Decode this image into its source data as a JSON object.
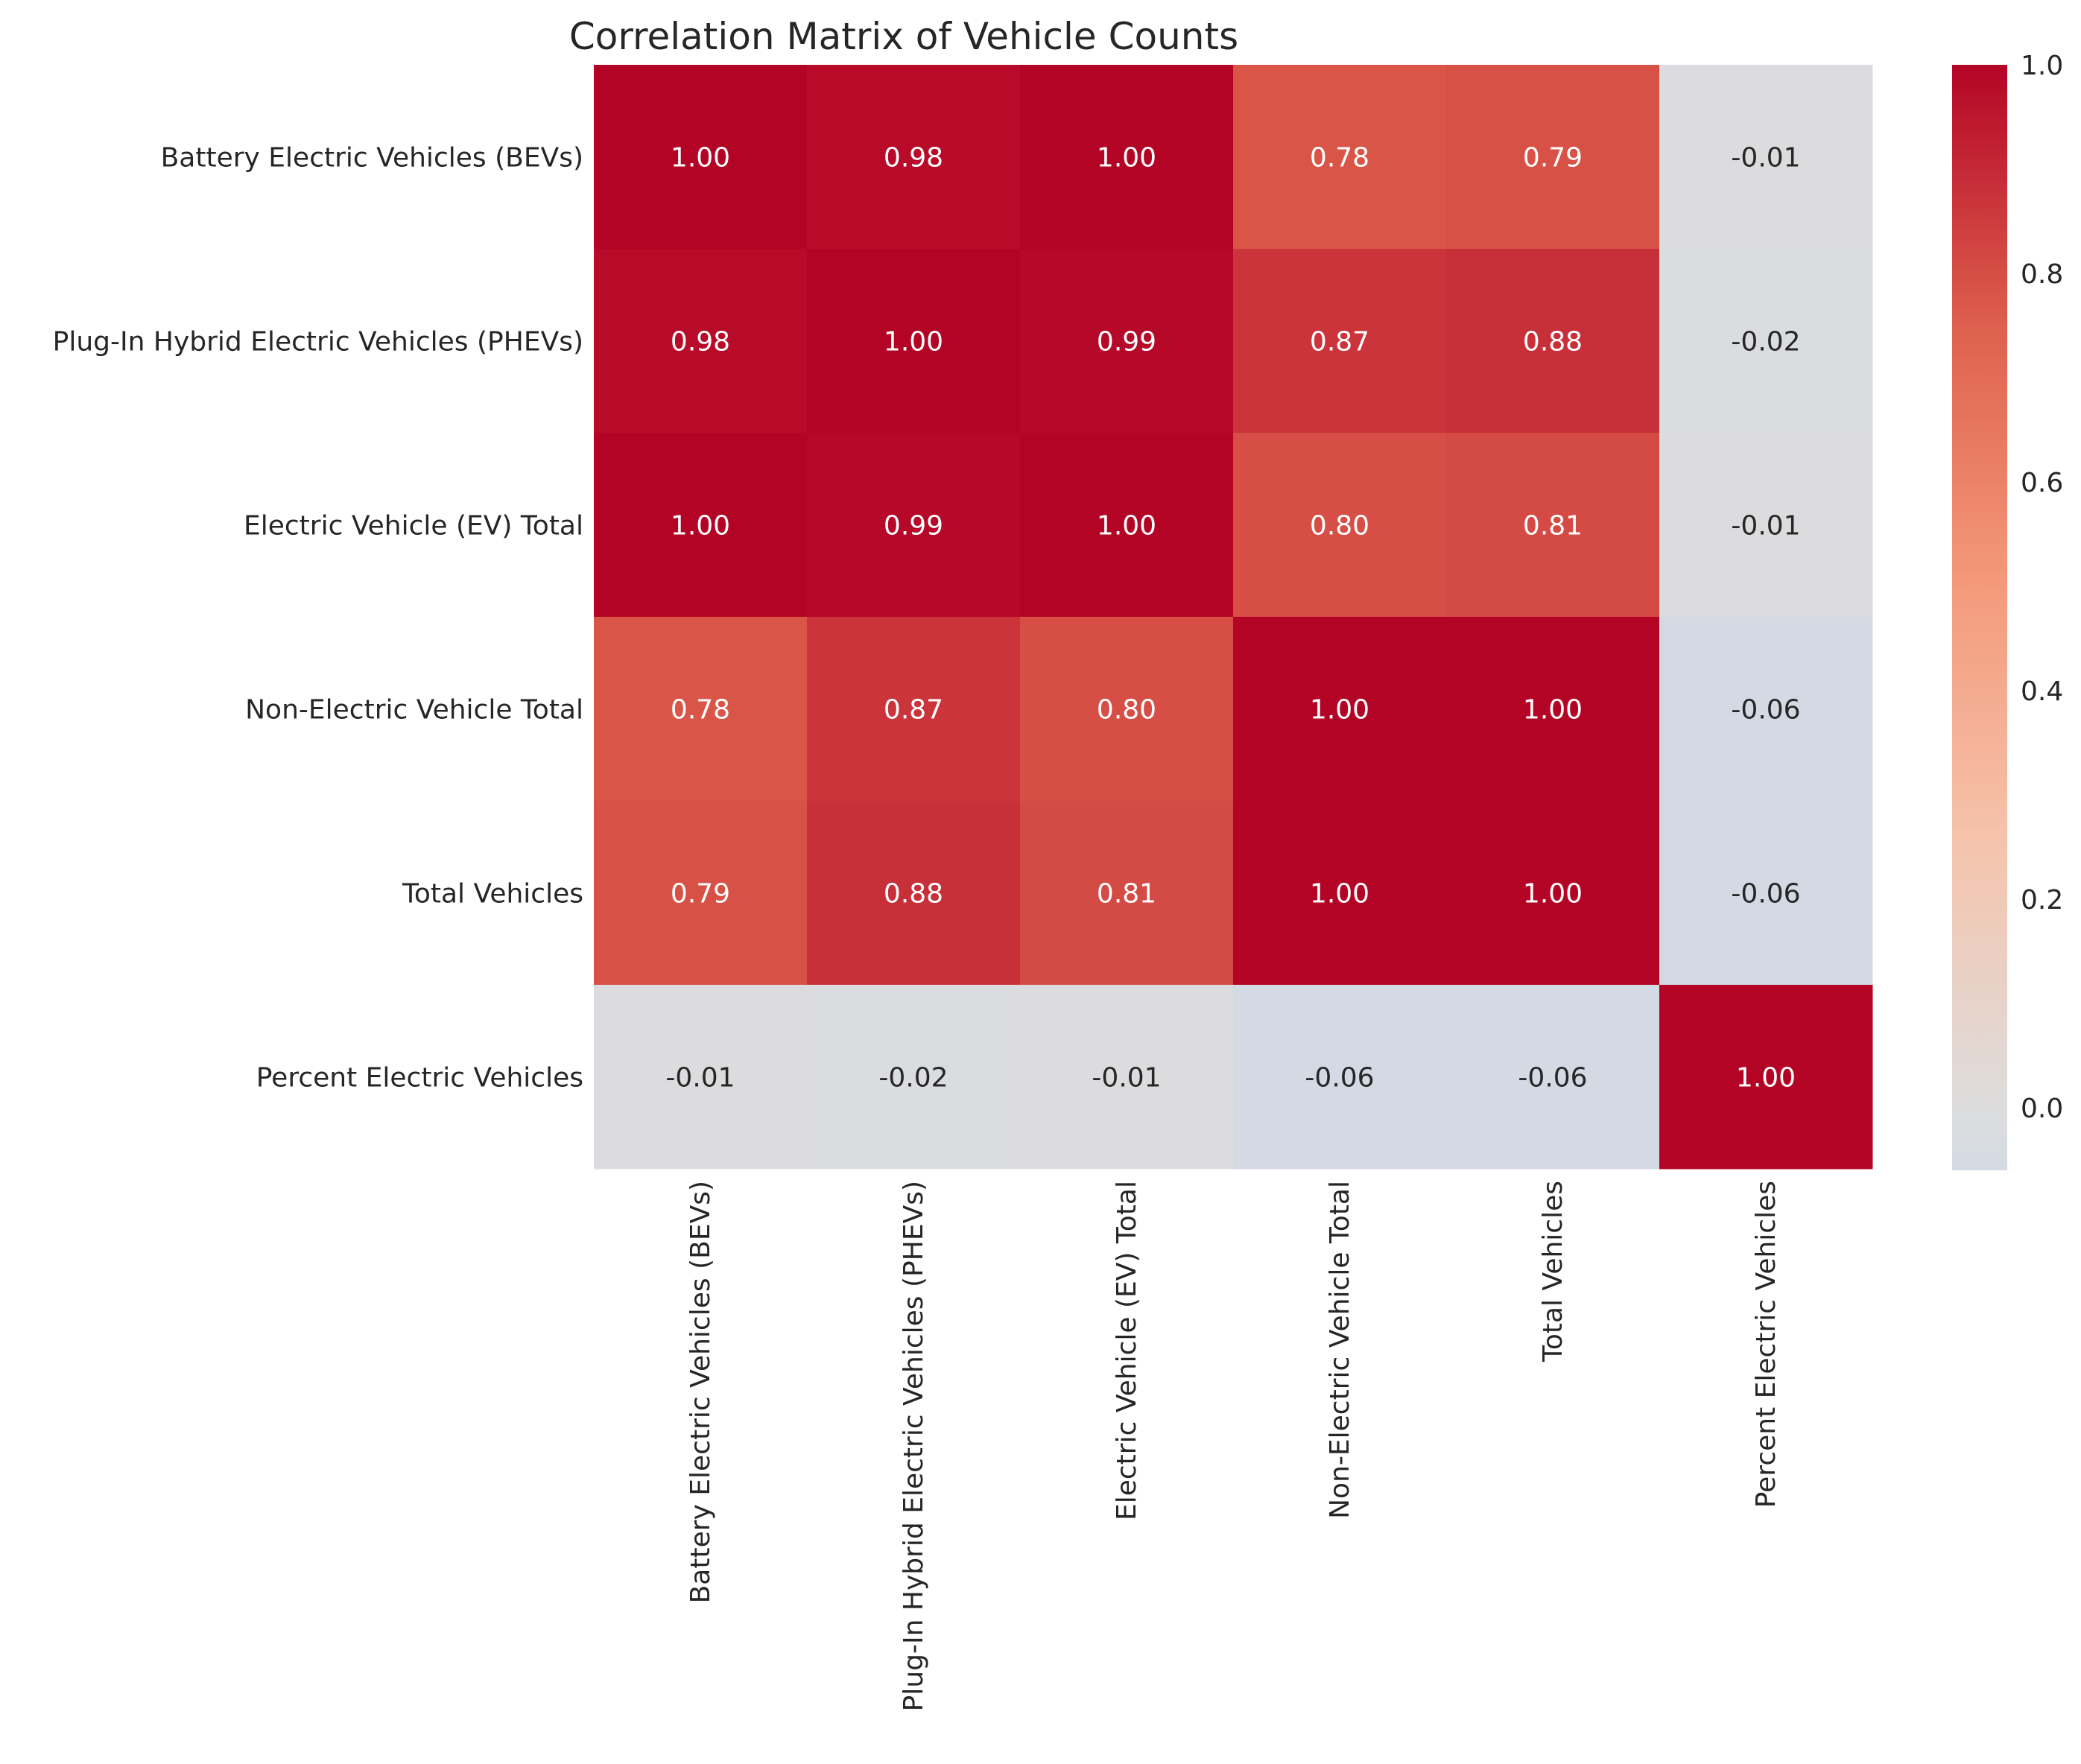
{
  "chart_data": {
    "type": "heatmap",
    "title": "Correlation Matrix of Vehicle Counts",
    "xlabel": "",
    "ylabel": "",
    "row_labels": [
      "Battery Electric Vehicles (BEVs)",
      "Plug-In Hybrid Electric Vehicles (PHEVs)",
      "Electric Vehicle (EV) Total",
      "Non-Electric Vehicle Total",
      "Total Vehicles",
      "Percent Electric Vehicles"
    ],
    "col_labels": [
      "Battery Electric Vehicles (BEVs)",
      "Plug-In Hybrid Electric Vehicles (PHEVs)",
      "Electric Vehicle (EV) Total",
      "Non-Electric Vehicle Total",
      "Total Vehicles",
      "Percent Electric Vehicles"
    ],
    "values": [
      [
        1.0,
        0.98,
        1.0,
        0.78,
        0.79,
        -0.01
      ],
      [
        0.98,
        1.0,
        0.99,
        0.87,
        0.88,
        -0.02
      ],
      [
        1.0,
        0.99,
        1.0,
        0.8,
        0.81,
        -0.01
      ],
      [
        0.78,
        0.87,
        0.8,
        1.0,
        1.0,
        -0.06
      ],
      [
        0.79,
        0.88,
        0.81,
        1.0,
        1.0,
        -0.06
      ],
      [
        -0.01,
        -0.02,
        -0.01,
        -0.06,
        -0.06,
        1.0
      ]
    ],
    "value_format": "0.00",
    "colormap": "coolwarm",
    "colormap_center": 0,
    "colorbar": {
      "range": [
        -0.06,
        1.0
      ],
      "ticks": [
        "0.0",
        "0.2",
        "0.4",
        "0.6",
        "0.8",
        "1.0"
      ],
      "tick_values": [
        0.0,
        0.2,
        0.4,
        0.6,
        0.8,
        1.0
      ]
    },
    "grid": false
  }
}
